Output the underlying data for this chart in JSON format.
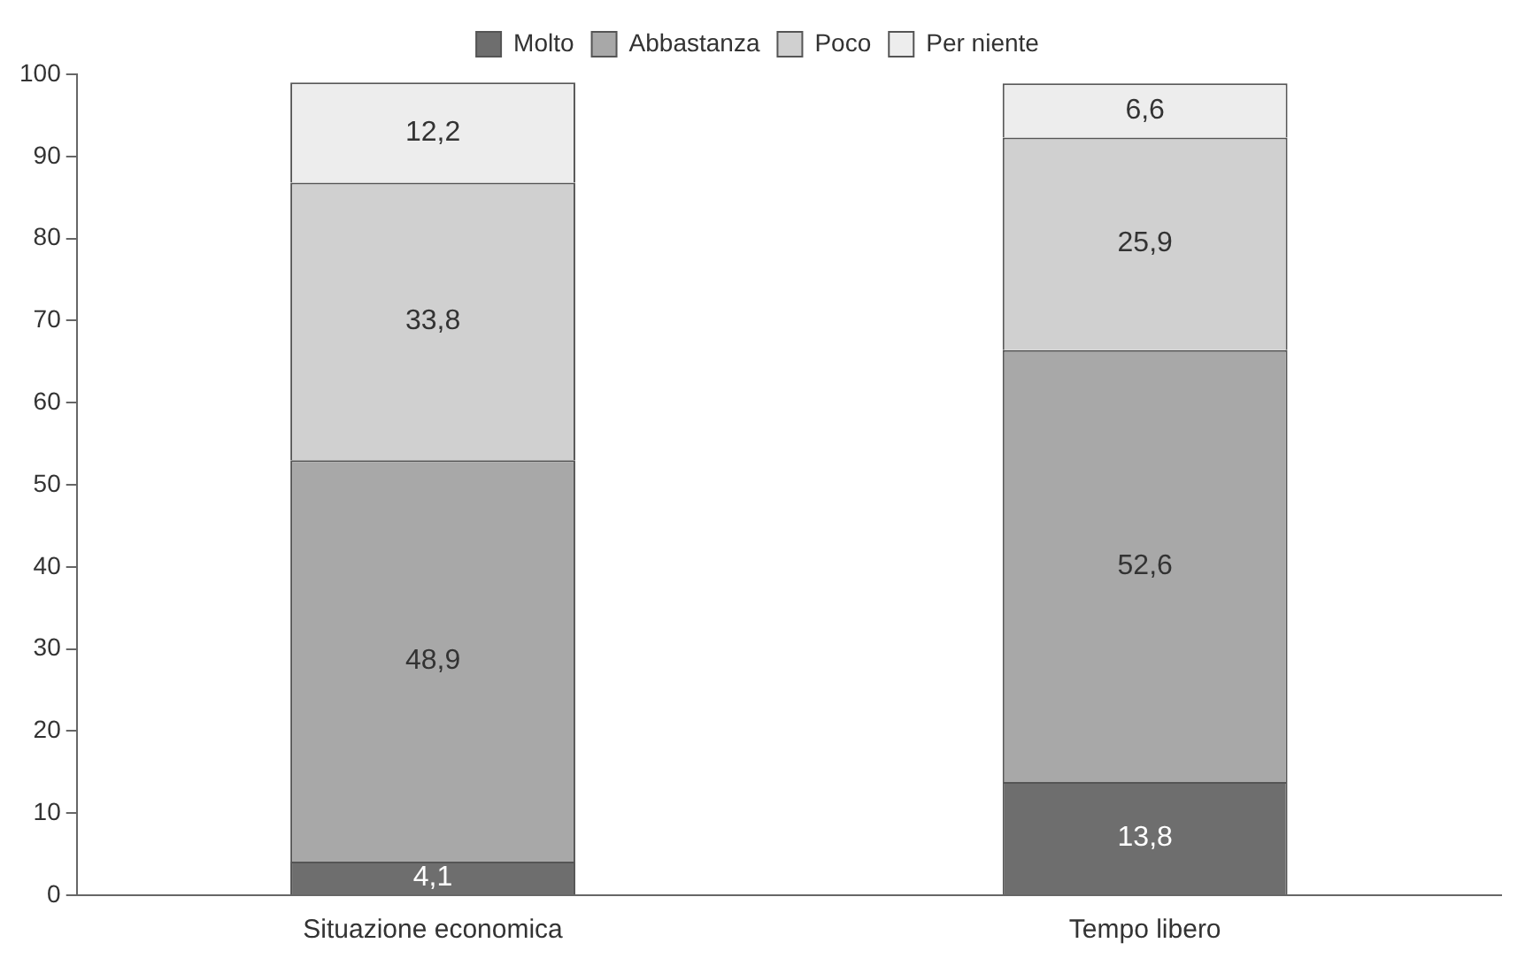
{
  "chart_data": {
    "type": "bar",
    "stacked": true,
    "categories": [
      "Situazione economica",
      "Tempo libero"
    ],
    "series": [
      {
        "name": "Molto",
        "color": "#6e6e6e",
        "values": [
          4.1,
          13.8
        ],
        "value_labels": [
          "4,1",
          "13,8"
        ]
      },
      {
        "name": "Abbastanza",
        "color": "#a8a8a8",
        "values": [
          48.9,
          52.6
        ],
        "value_labels": [
          "48,9",
          "52,6"
        ]
      },
      {
        "name": "Poco",
        "color": "#d0d0d0",
        "values": [
          33.8,
          25.9
        ],
        "value_labels": [
          "33,8",
          "25,9"
        ]
      },
      {
        "name": "Per niente",
        "color": "#ededed",
        "values": [
          12.2,
          6.6
        ],
        "value_labels": [
          "12,2",
          "6,6"
        ]
      }
    ],
    "ylim": [
      0,
      100
    ],
    "yticks": [
      0,
      10,
      20,
      30,
      40,
      50,
      60,
      70,
      80,
      90,
      100
    ],
    "grid": false,
    "legend": "top"
  }
}
